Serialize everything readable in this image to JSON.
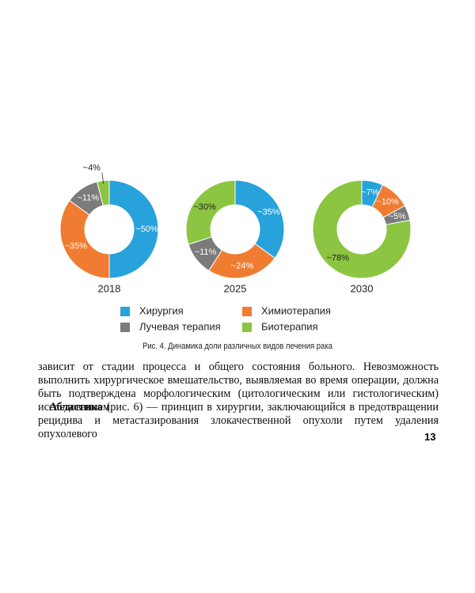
{
  "chart_data": {
    "type": "donut",
    "categories": [
      "Хирургия",
      "Химиотерапия",
      "Лучевая терапия",
      "Биотерапия"
    ],
    "colors": [
      "#27a2db",
      "#f07c31",
      "#7b7b7b",
      "#8cc541"
    ],
    "series": [
      {
        "name": "2018",
        "values": [
          50,
          35,
          11,
          4
        ],
        "value_labels": [
          "~50%",
          "~35%",
          "~11%",
          "~4%"
        ]
      },
      {
        "name": "2025",
        "values": [
          35,
          24,
          11,
          30
        ],
        "value_labels": [
          "~35%",
          "~24%",
          "~11%",
          "~30%"
        ]
      },
      {
        "name": "2030",
        "values": [
          7,
          10,
          5,
          78
        ],
        "value_labels": [
          "~7%",
          "~10%",
          "~5%",
          "~78%"
        ]
      }
    ]
  },
  "caption": "Рис. 4. Динамика доли различных видов лечения рака",
  "paragraphs": [
    {
      "text": "зависит от стадии процесса и общего состояния больного. Невозможность выполнить хирургическое вмешательство, выявляемая во время операции, должна быть подтверждена морфологическим (цитологическим или гистологическим) исследованием."
    },
    {
      "lead": "Абластика",
      "text": " (рис. 6) — принцип в хирургии, заключающийся в предотвращении рецидива и метастазирования злокачественной опухоли путем удаления опухолевого"
    }
  ],
  "page_number": "13"
}
